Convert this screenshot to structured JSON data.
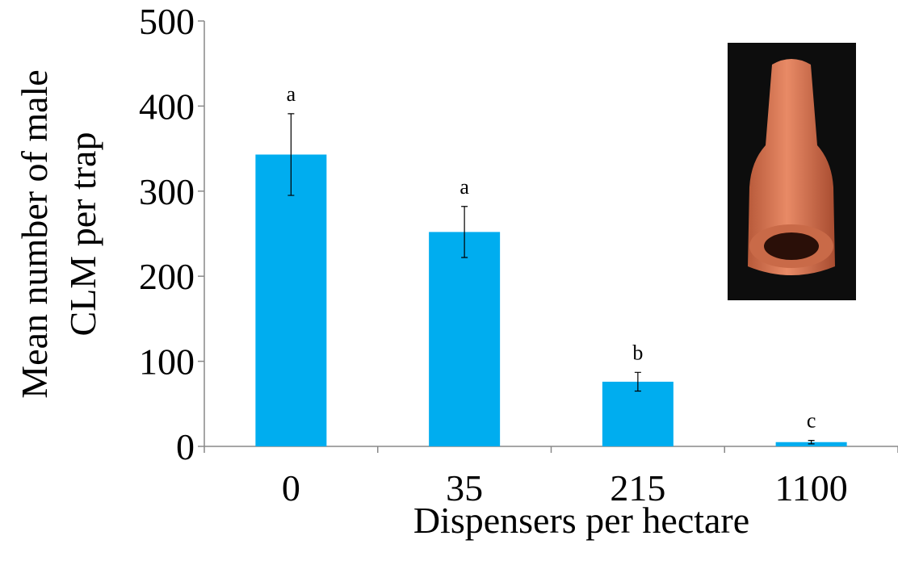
{
  "chart_data": {
    "type": "bar",
    "x_label": "Dispensers per hectare",
    "y_label": [
      "Mean number of male",
      "CLM per trap"
    ],
    "categories": [
      "0",
      "35",
      "215",
      "1100"
    ],
    "values": [
      343,
      252,
      76,
      5
    ],
    "errors": [
      48,
      30,
      11,
      2
    ],
    "letters": [
      "a",
      "a",
      "b",
      "c"
    ],
    "color": "#00adef",
    "ylim": [
      0,
      500
    ],
    "yticks": [
      0,
      100,
      200,
      300,
      400,
      500
    ]
  }
}
